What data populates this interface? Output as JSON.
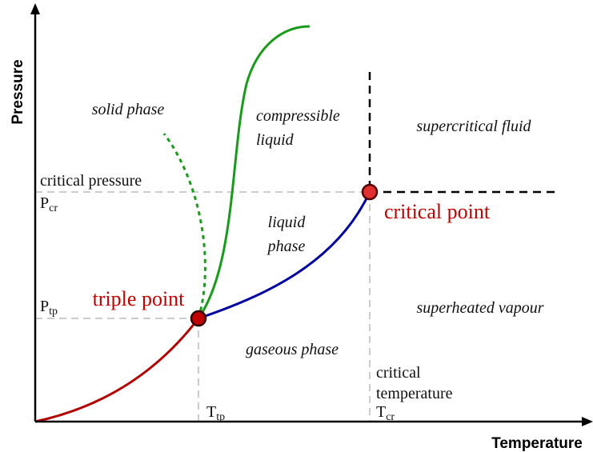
{
  "axes": {
    "x_label": "Temperature",
    "y_label": "Pressure"
  },
  "regions": {
    "solid": "solid phase",
    "compressible": [
      "compressible",
      "liquid"
    ],
    "supercritical": "supercritical fluid",
    "liquid": [
      "liquid",
      "phase"
    ],
    "superheated": "superheated vapour",
    "gaseous": "gaseous phase"
  },
  "points": {
    "triple": "triple point",
    "critical": "critical point"
  },
  "levels": {
    "critical_pressure": "critical pressure",
    "p_cr": {
      "main": "P",
      "sub": "cr"
    },
    "p_tp": {
      "main": "P",
      "sub": "tp"
    },
    "critical_temperature": [
      "critical",
      "temperature"
    ],
    "t_cr": {
      "main": "T",
      "sub": "cr"
    },
    "t_tp": {
      "main": "T",
      "sub": "tp"
    }
  }
}
